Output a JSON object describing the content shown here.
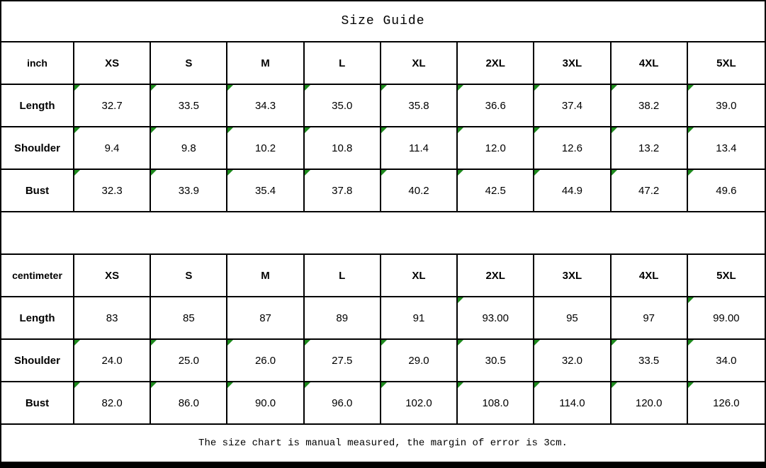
{
  "title": "Size Guide",
  "footer_note": "The size chart is manual measured, the margin of error is 3cm.",
  "colors": {
    "border": "#000000",
    "background": "#ffffff",
    "text": "#000000",
    "flag_green": "#1d8a1d"
  },
  "tables": [
    {
      "unit_label": "inch",
      "sizes": [
        "XS",
        "S",
        "M",
        "L",
        "XL",
        "2XL",
        "3XL",
        "4XL",
        "5XL"
      ],
      "rows": [
        {
          "label": "Length",
          "values": [
            "32.7",
            "33.5",
            "34.3",
            "35.0",
            "35.8",
            "36.6",
            "37.4",
            "38.2",
            "39.0"
          ],
          "flags": [
            true,
            true,
            true,
            true,
            true,
            true,
            true,
            true,
            true
          ]
        },
        {
          "label": "Shoulder",
          "values": [
            "9.4",
            "9.8",
            "10.2",
            "10.8",
            "11.4",
            "12.0",
            "12.6",
            "13.2",
            "13.4"
          ],
          "flags": [
            true,
            true,
            true,
            true,
            true,
            true,
            true,
            true,
            true
          ]
        },
        {
          "label": "Bust",
          "values": [
            "32.3",
            "33.9",
            "35.4",
            "37.8",
            "40.2",
            "42.5",
            "44.9",
            "47.2",
            "49.6"
          ],
          "flags": [
            true,
            true,
            true,
            true,
            true,
            true,
            true,
            true,
            true
          ]
        }
      ]
    },
    {
      "unit_label": "centimeter",
      "sizes": [
        "XS",
        "S",
        "M",
        "L",
        "XL",
        "2XL",
        "3XL",
        "4XL",
        "5XL"
      ],
      "rows": [
        {
          "label": "Length",
          "values": [
            "83",
            "85",
            "87",
            "89",
            "91",
            "93.00",
            "95",
            "97",
            "99.00"
          ],
          "flags": [
            false,
            false,
            false,
            false,
            false,
            true,
            false,
            false,
            true
          ]
        },
        {
          "label": "Shoulder",
          "values": [
            "24.0",
            "25.0",
            "26.0",
            "27.5",
            "29.0",
            "30.5",
            "32.0",
            "33.5",
            "34.0"
          ],
          "flags": [
            true,
            true,
            true,
            true,
            true,
            true,
            true,
            true,
            true
          ]
        },
        {
          "label": "Bust",
          "values": [
            "82.0",
            "86.0",
            "90.0",
            "96.0",
            "102.0",
            "108.0",
            "114.0",
            "120.0",
            "126.0"
          ],
          "flags": [
            true,
            true,
            true,
            true,
            true,
            true,
            true,
            true,
            true
          ]
        }
      ]
    }
  ],
  "chart_data": [
    {
      "type": "table",
      "title": "Size Guide (inch)",
      "columns": [
        "inch",
        "XS",
        "S",
        "M",
        "L",
        "XL",
        "2XL",
        "3XL",
        "4XL",
        "5XL"
      ],
      "rows": [
        [
          "Length",
          32.7,
          33.5,
          34.3,
          35.0,
          35.8,
          36.6,
          37.4,
          38.2,
          39.0
        ],
        [
          "Shoulder",
          9.4,
          9.8,
          10.2,
          10.8,
          11.4,
          12.0,
          12.6,
          13.2,
          13.4
        ],
        [
          "Bust",
          32.3,
          33.9,
          35.4,
          37.8,
          40.2,
          42.5,
          44.9,
          47.2,
          49.6
        ]
      ]
    },
    {
      "type": "table",
      "title": "Size Guide (centimeter)",
      "columns": [
        "centimeter",
        "XS",
        "S",
        "M",
        "L",
        "XL",
        "2XL",
        "3XL",
        "4XL",
        "5XL"
      ],
      "rows": [
        [
          "Length",
          83,
          85,
          87,
          89,
          91,
          93.0,
          95,
          97,
          99.0
        ],
        [
          "Shoulder",
          24.0,
          25.0,
          26.0,
          27.5,
          29.0,
          30.5,
          32.0,
          33.5,
          34.0
        ],
        [
          "Bust",
          82.0,
          86.0,
          90.0,
          96.0,
          102.0,
          108.0,
          114.0,
          120.0,
          126.0
        ]
      ]
    }
  ]
}
